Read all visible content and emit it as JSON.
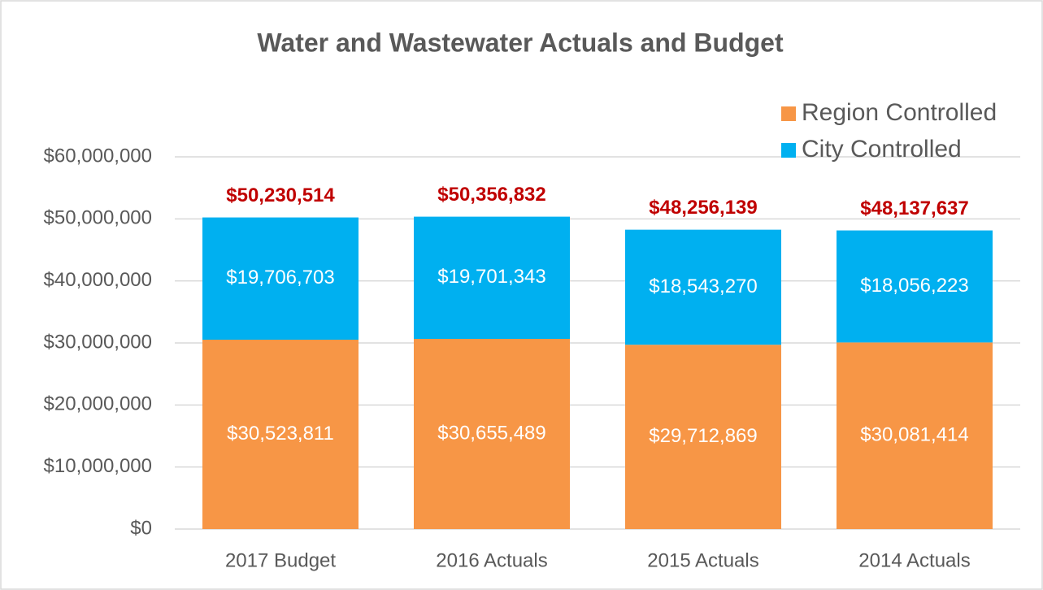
{
  "chart_data": {
    "type": "stacked_bar",
    "title": "Water and Wastewater Actuals and Budget",
    "categories": [
      "2017 Budget",
      "2016 Actuals",
      "2015 Actuals",
      "2014 Actuals"
    ],
    "series": [
      {
        "name": "Region Controlled",
        "color": "#f79646",
        "values": [
          30523811,
          30655489,
          29712869,
          30081414
        ],
        "value_labels": [
          "$30,523,811",
          "$30,655,489",
          "$29,712,869",
          "$30,081,414"
        ]
      },
      {
        "name": "City Controlled",
        "color": "#00b0f0",
        "values": [
          19706703,
          19701343,
          18543270,
          18056223
        ],
        "value_labels": [
          "$19,706,703",
          "$19,701,343",
          "$18,543,270",
          "$18,056,223"
        ]
      }
    ],
    "totals": [
      50230514,
      50356832,
      48256139,
      48137637
    ],
    "total_labels": [
      "$50,230,514",
      "$50,356,832",
      "$48,256,139",
      "$48,137,637"
    ],
    "total_color": "#c00000",
    "ylim": [
      0,
      60000000
    ],
    "yticks": [
      {
        "value": 0,
        "label": "$0"
      },
      {
        "value": 10000000,
        "label": "$10,000,000"
      },
      {
        "value": 20000000,
        "label": "$20,000,000"
      },
      {
        "value": 30000000,
        "label": "$30,000,000"
      },
      {
        "value": 40000000,
        "label": "$40,000,000"
      },
      {
        "value": 50000000,
        "label": "$50,000,000"
      },
      {
        "value": 60000000,
        "label": "$60,000,000"
      }
    ],
    "grid": true,
    "legend": "upper right"
  }
}
